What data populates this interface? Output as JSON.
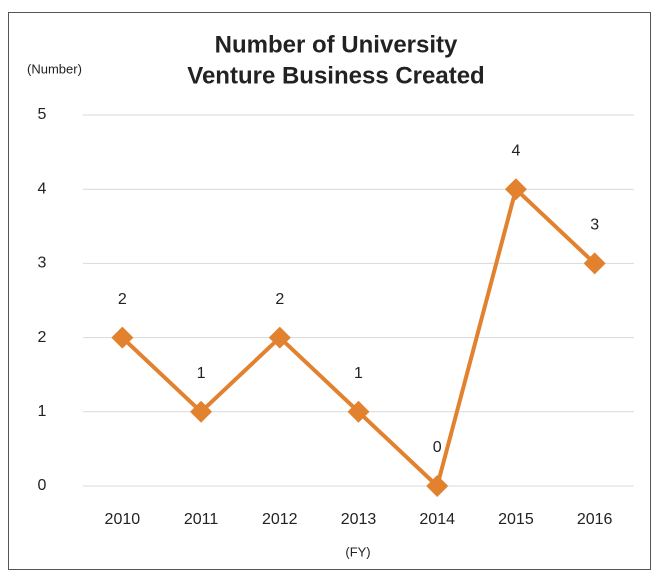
{
  "chart_data": {
    "type": "line",
    "title": [
      "Number of University",
      "Venture Business Created"
    ],
    "y_label": "(Number)",
    "x_label": "(FY)",
    "categories": [
      "2010",
      "2011",
      "2012",
      "2013",
      "2014",
      "2015",
      "2016"
    ],
    "series": [
      {
        "name": "Number of University Venture Business Created",
        "color": "#e2822f",
        "values": [
          2,
          1,
          2,
          1,
          0,
          4,
          3
        ]
      }
    ],
    "ylim": [
      0,
      5
    ],
    "yticks": [
      0,
      1,
      2,
      3,
      4,
      5
    ],
    "grid": true,
    "data_labels": true
  }
}
